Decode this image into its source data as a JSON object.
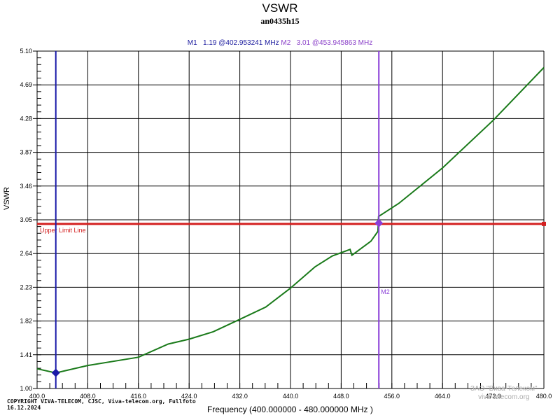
{
  "header": {
    "title": "VSWR",
    "subtitle": "an0435h15"
  },
  "markers": {
    "m1": {
      "label": "M1",
      "value": "1.19",
      "freq": "@402.953241 MHz"
    },
    "m2": {
      "label": "M2",
      "value": "3.01",
      "freq": "@453.945863 MHz"
    }
  },
  "axes": {
    "ylabel": "VSWR",
    "xlabel": "Frequency (400.000000 - 480.000000 MHz )"
  },
  "limit_line": {
    "label": "Upper Limit Line",
    "value": 3.0,
    "color": "#d42020"
  },
  "marker_plot_label_m2": "M2",
  "footer": {
    "copyright": "COPYRIGHT VIVA-TELECOM, CJSC, Viva-telecom.org, Fullfoto",
    "date": "16.12.2024",
    "watermark_line1": "ЗАО \"Вива-Телеком\"",
    "watermark_line2": "viva-telecom.org"
  },
  "colors": {
    "trace": "#1a7a1a",
    "m1": "#1a1aa8",
    "m2": "#8a3fd8",
    "limit": "#d42020",
    "grid": "#000000"
  },
  "chart_data": {
    "type": "line",
    "title": "VSWR",
    "subtitle": "an0435h15",
    "xlabel": "Frequency (400.000000 - 480.000000 MHz )",
    "ylabel": "VSWR",
    "xlim": [
      400,
      480
    ],
    "ylim": [
      1.0,
      5.1
    ],
    "x_ticks": [
      "400.0",
      "408.0",
      "416.0",
      "424.0",
      "432.0",
      "440.0",
      "448.0",
      "456.0",
      "464.0",
      "472.0",
      "480.0"
    ],
    "y_ticks": [
      "1.00",
      "1.41",
      "1.82",
      "2.23",
      "2.64",
      "3.05",
      "3.46",
      "3.87",
      "4.28",
      "4.69",
      "5.10"
    ],
    "grid": true,
    "series": [
      {
        "name": "VSWR",
        "x": [
          400.0,
          402.95,
          408.0,
          416.0,
          420.7,
          424.0,
          427.8,
          432.0,
          436.1,
          440.0,
          443.9,
          446.6,
          449.4,
          449.7,
          452.7,
          453.8,
          453.9,
          457.1,
          464.0,
          472.0,
          480.0
        ],
        "values": [
          1.24,
          1.19,
          1.28,
          1.38,
          1.54,
          1.6,
          1.69,
          1.84,
          1.99,
          2.22,
          2.48,
          2.61,
          2.69,
          2.62,
          2.79,
          2.91,
          3.09,
          3.25,
          3.68,
          4.26,
          4.9
        ]
      }
    ],
    "limit_lines": [
      {
        "name": "Upper Limit Line",
        "y": 3.0
      }
    ],
    "markers": [
      {
        "name": "M1",
        "x": 402.953241,
        "y": 1.19
      },
      {
        "name": "M2",
        "x": 453.945863,
        "y": 3.01
      }
    ]
  }
}
